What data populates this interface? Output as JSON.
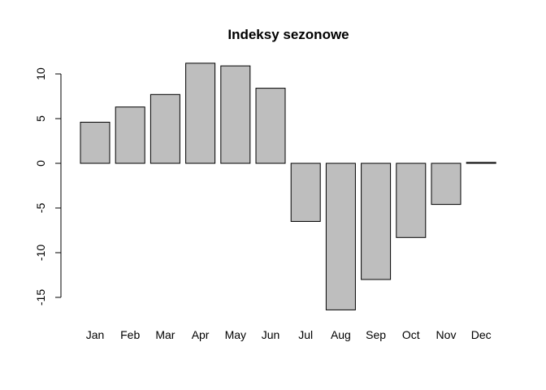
{
  "chart_data": {
    "type": "bar",
    "title": "Indeksy sezonowe",
    "xlabel": "",
    "ylabel": "",
    "categories": [
      "Jan",
      "Feb",
      "Mar",
      "Apr",
      "May",
      "Jun",
      "Jul",
      "Aug",
      "Sep",
      "Oct",
      "Nov",
      "Dec"
    ],
    "values": [
      4.6,
      6.3,
      7.7,
      11.2,
      10.9,
      8.4,
      -6.5,
      -16.4,
      -13.0,
      -8.3,
      -4.6,
      0.1
    ],
    "ylim": [
      -15,
      10
    ],
    "yticks": [
      "-15",
      "-10",
      "-5",
      "0",
      "5",
      "10"
    ],
    "grid": false,
    "legend": "none",
    "bar_color": "#bebebe",
    "border_color": "#000000"
  }
}
